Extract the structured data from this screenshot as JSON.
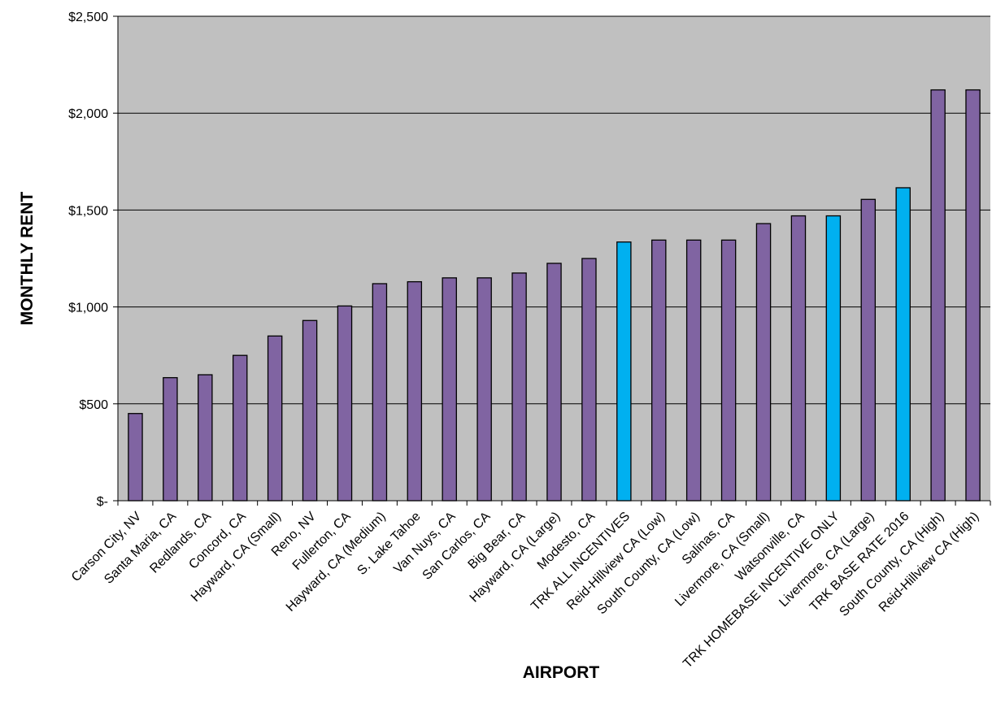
{
  "chart_data": {
    "type": "bar",
    "title": "",
    "xlabel": "AIRPORT",
    "ylabel": "MONTHLY RENT",
    "ylim": [
      0,
      2500
    ],
    "yticks": [
      0,
      500,
      1000,
      1500,
      2000,
      2500
    ],
    "ytick_labels": [
      "$-",
      "$500",
      "$1,000",
      "$1,500",
      "$2,000",
      "$2,500"
    ],
    "grid": "horizontal major gridlines",
    "legend": "none",
    "plot_background": "#c0c0c0",
    "categories": [
      "Carson City, NV",
      "Santa Maria, CA",
      "Redlands, CA",
      "Concord, CA",
      "Hayward, CA (Small)",
      "Reno, NV",
      "Fullerton, CA",
      "Hayward, CA (Medium)",
      "S. Lake Tahoe",
      "Van Nuys, CA",
      "San Carlos, CA",
      "Big Bear, CA",
      "Hayward, CA (Large)",
      "Modesto, CA",
      "TRK ALL INCENTIVES",
      "Reid-Hillview CA (Low)",
      "South County, CA (Low)",
      "Salinas, CA",
      "Livermore, CA (Small)",
      "Watsonville, CA",
      "TRK HOMEBASE INCENTIVE ONLY",
      "Livermore, CA (Large)",
      "TRK BASE RATE 2016",
      "South County, CA (High)",
      "Reid-Hillview CA (High)"
    ],
    "values": [
      450,
      635,
      650,
      750,
      850,
      930,
      1005,
      1120,
      1130,
      1150,
      1150,
      1175,
      1225,
      1250,
      1335,
      1345,
      1345,
      1345,
      1430,
      1470,
      1470,
      1555,
      1615,
      2120,
      2120
    ],
    "highlight_categories": [
      "TRK ALL INCENTIVES",
      "TRK HOMEBASE INCENTIVE ONLY",
      "TRK BASE RATE 2016"
    ],
    "colors": {
      "default_bar": "#8064a2",
      "highlight_bar": "#00b0f0",
      "bar_outline": "#000000",
      "grid": "#000000"
    }
  }
}
